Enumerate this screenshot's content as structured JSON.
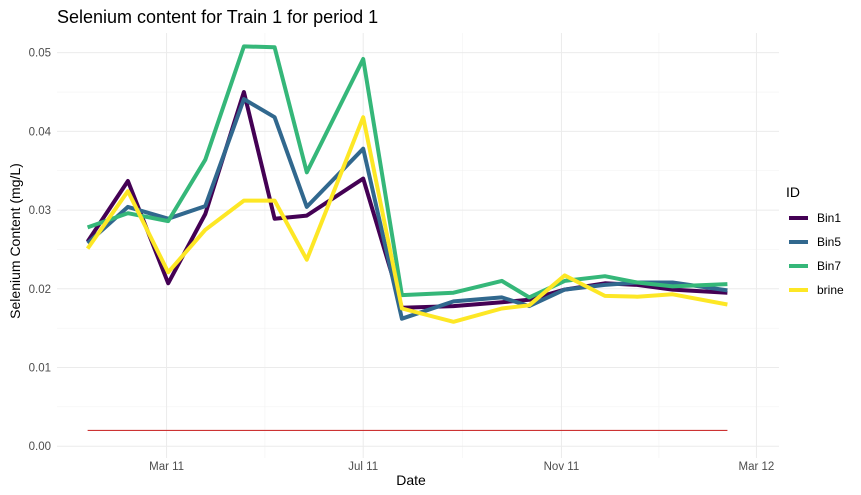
{
  "chart_data": {
    "type": "line",
    "title": "Selenium content for Train 1 for period 1",
    "xlabel": "Date",
    "ylabel": "Selenium Content (mg/L)",
    "x_axis": {
      "type": "date",
      "range": [
        "2010-12-23",
        "2012-03-15"
      ],
      "ticks": [
        {
          "date": "2011-03-01",
          "label": "Mar 11"
        },
        {
          "date": "2011-07-01",
          "label": "Jul 11"
        },
        {
          "date": "2011-11-01",
          "label": "Nov 11"
        },
        {
          "date": "2012-03-01",
          "label": "Mar 12"
        }
      ]
    },
    "y_axis": {
      "range": [
        -0.0015,
        0.0525
      ],
      "ticks": [
        {
          "value": 0.0,
          "label": "0.00"
        },
        {
          "value": 0.01,
          "label": "0.01"
        },
        {
          "value": 0.02,
          "label": "0.02"
        },
        {
          "value": 0.03,
          "label": "0.03"
        },
        {
          "value": 0.04,
          "label": "0.04"
        },
        {
          "value": 0.05,
          "label": "0.05"
        }
      ]
    },
    "grid": true,
    "legend": {
      "title": "ID",
      "position": "right"
    },
    "x": [
      "2011-01-11",
      "2011-02-05",
      "2011-03-02",
      "2011-03-25",
      "2011-04-18",
      "2011-05-07",
      "2011-05-27",
      "2011-07-01",
      "2011-07-25",
      "2011-08-26",
      "2011-09-25",
      "2011-10-12",
      "2011-11-03",
      "2011-11-28",
      "2011-12-18",
      "2012-01-09",
      "2012-02-12"
    ],
    "series": [
      {
        "name": "Bin1",
        "color": "#440154",
        "values": [
          0.026,
          0.0337,
          0.0207,
          0.0295,
          0.045,
          0.0289,
          0.0293,
          0.034,
          0.0176,
          0.0178,
          0.0183,
          0.0186,
          0.0199,
          0.0207,
          0.0205,
          0.0199,
          0.0195
        ]
      },
      {
        "name": "Bin5",
        "color": "#31688e",
        "values": [
          0.0258,
          0.0304,
          0.0289,
          0.0305,
          0.0441,
          0.0418,
          0.0304,
          0.0378,
          0.0162,
          0.0184,
          0.0189,
          0.0178,
          0.0199,
          0.0205,
          0.0208,
          0.0208,
          0.0198
        ]
      },
      {
        "name": "Bin7",
        "color": "#35b779",
        "values": [
          0.0278,
          0.0296,
          0.0286,
          0.0364,
          0.0508,
          0.0507,
          0.0348,
          0.0492,
          0.0192,
          0.0195,
          0.021,
          0.0189,
          0.021,
          0.0216,
          0.0208,
          0.0203,
          0.0206
        ]
      },
      {
        "name": "brine",
        "color": "#fde725",
        "values": [
          0.0251,
          0.0324,
          0.0221,
          0.0275,
          0.0312,
          0.0312,
          0.0237,
          0.0418,
          0.0175,
          0.0158,
          0.0175,
          0.0179,
          0.0217,
          0.0191,
          0.019,
          0.0193,
          0.018
        ]
      }
    ],
    "reference_line": {
      "value": 0.002,
      "color": "#cc3333",
      "from": "2011-01-11",
      "to": "2012-02-12"
    }
  }
}
